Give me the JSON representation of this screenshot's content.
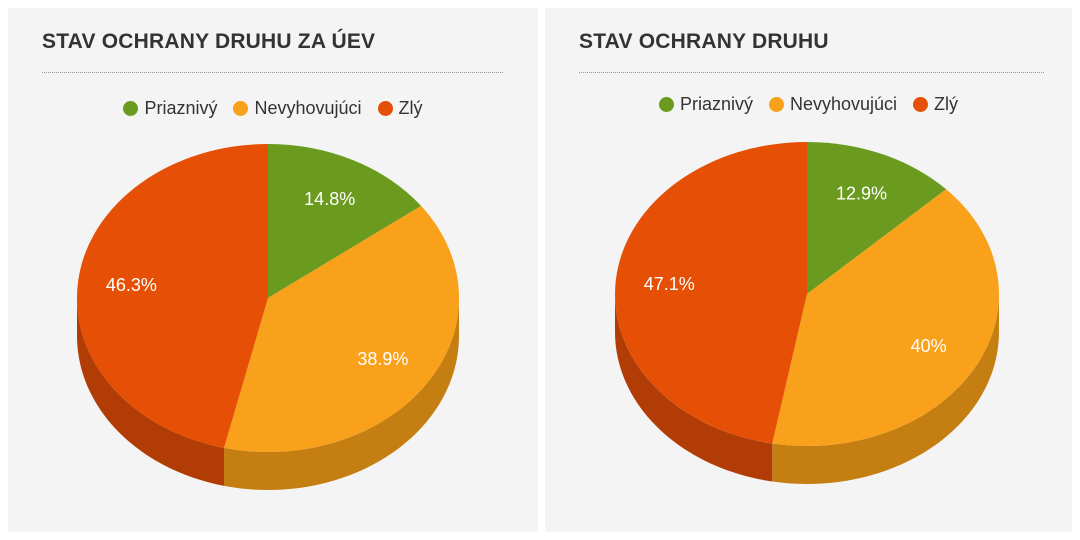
{
  "legend": [
    "Priaznivý",
    "Nevyhovujúci",
    "Zlý"
  ],
  "colors": {
    "priaznivy": "#6a9b1f",
    "nevyhovujuci": "#f9a11b",
    "zly": "#e54f06",
    "priaznivy_side": "#4f7417",
    "nevyhovujuci_side": "#c47e12",
    "zly_side": "#b23c05"
  },
  "panels": [
    {
      "title": "STAV OCHRANY DRUHU ZA ÚEV",
      "legend": [
        "Priaznivý",
        "Nevyhovujúci",
        "Zlý"
      ],
      "slice_labels": [
        "14.8%",
        "38.9%",
        "46.3%"
      ]
    },
    {
      "title": "STAV OCHRANY DRUHU",
      "legend": [
        "Priaznivý",
        "Nevyhovujúci",
        "Zlý"
      ],
      "slice_labels": [
        "12.9%",
        "40%",
        "47.1%"
      ]
    }
  ],
  "chart_data": [
    {
      "type": "pie",
      "title": "STAV OCHRANY DRUHU ZA ÚEV",
      "categories": [
        "Priaznivý",
        "Nevyhovujúci",
        "Zlý"
      ],
      "values": [
        14.8,
        38.9,
        46.3
      ],
      "legend_position": "top"
    },
    {
      "type": "pie",
      "title": "STAV OCHRANY DRUHU",
      "categories": [
        "Priaznivý",
        "Nevyhovujúci",
        "Zlý"
      ],
      "values": [
        12.9,
        40,
        47.1
      ],
      "legend_position": "top"
    }
  ]
}
